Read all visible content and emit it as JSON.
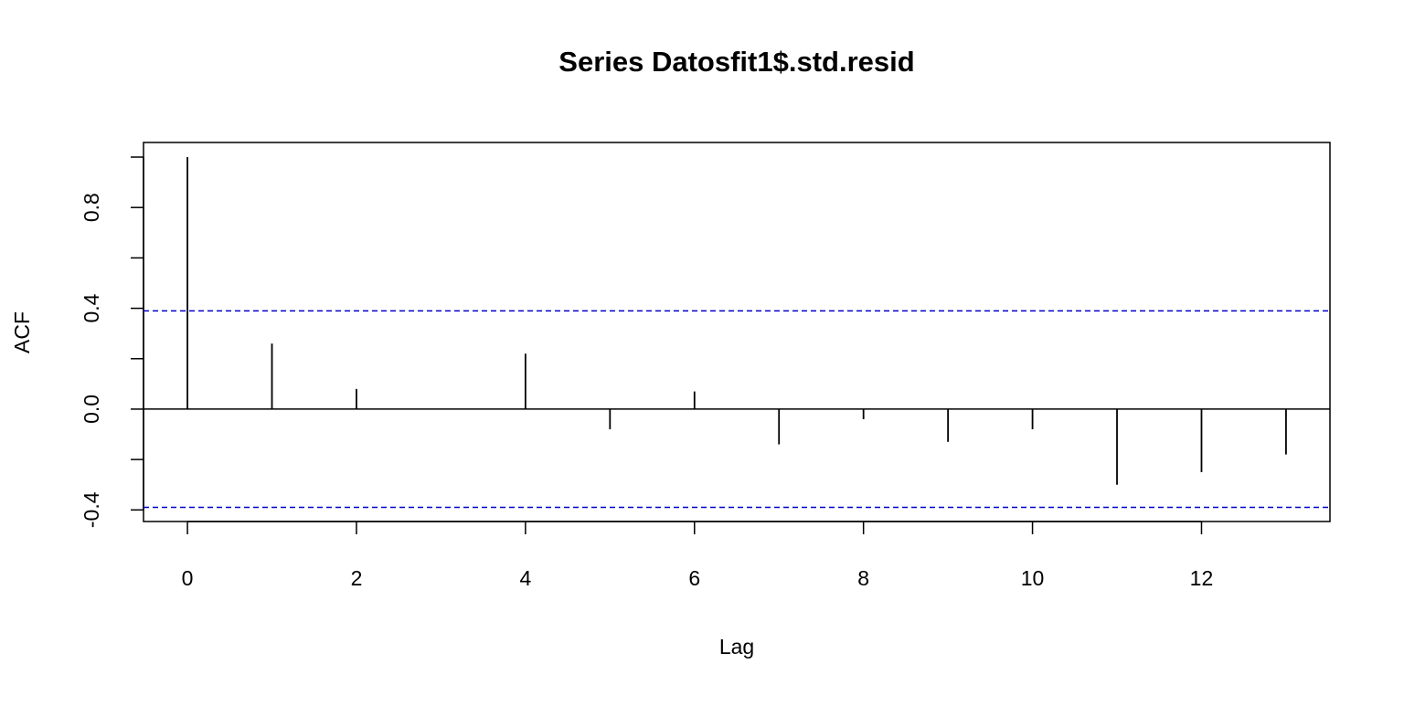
{
  "chart_data": {
    "type": "acf",
    "title": "Series  Datosfit1$.std.resid",
    "x_label": "Lag",
    "y_label": "ACF",
    "x": [
      0,
      1,
      2,
      3,
      4,
      5,
      6,
      7,
      8,
      9,
      10,
      11,
      12,
      13
    ],
    "values": [
      1.0,
      0.26,
      0.08,
      0.0,
      0.22,
      -0.08,
      0.07,
      -0.14,
      -0.04,
      -0.13,
      -0.08,
      -0.3,
      -0.25,
      -0.18
    ],
    "color": "#000000",
    "confidence_limit": 0.39,
    "confidence_color": "#0000cc",
    "xlim": [
      -0.52,
      13.52
    ],
    "xticks": [
      0,
      2,
      4,
      6,
      8,
      10,
      12
    ],
    "ylim": [
      -0.446,
      1.058
    ],
    "yticks": [
      {
        "value": -0.4,
        "label": "-0.4"
      },
      {
        "value": -0.2,
        "label": null
      },
      {
        "value": 0,
        "label": "0.0"
      },
      {
        "value": 0.2,
        "label": null
      },
      0.4,
      {
        "value": 0.6,
        "label": null
      },
      0.8,
      {
        "value": 1.0,
        "label": null
      }
    ]
  }
}
